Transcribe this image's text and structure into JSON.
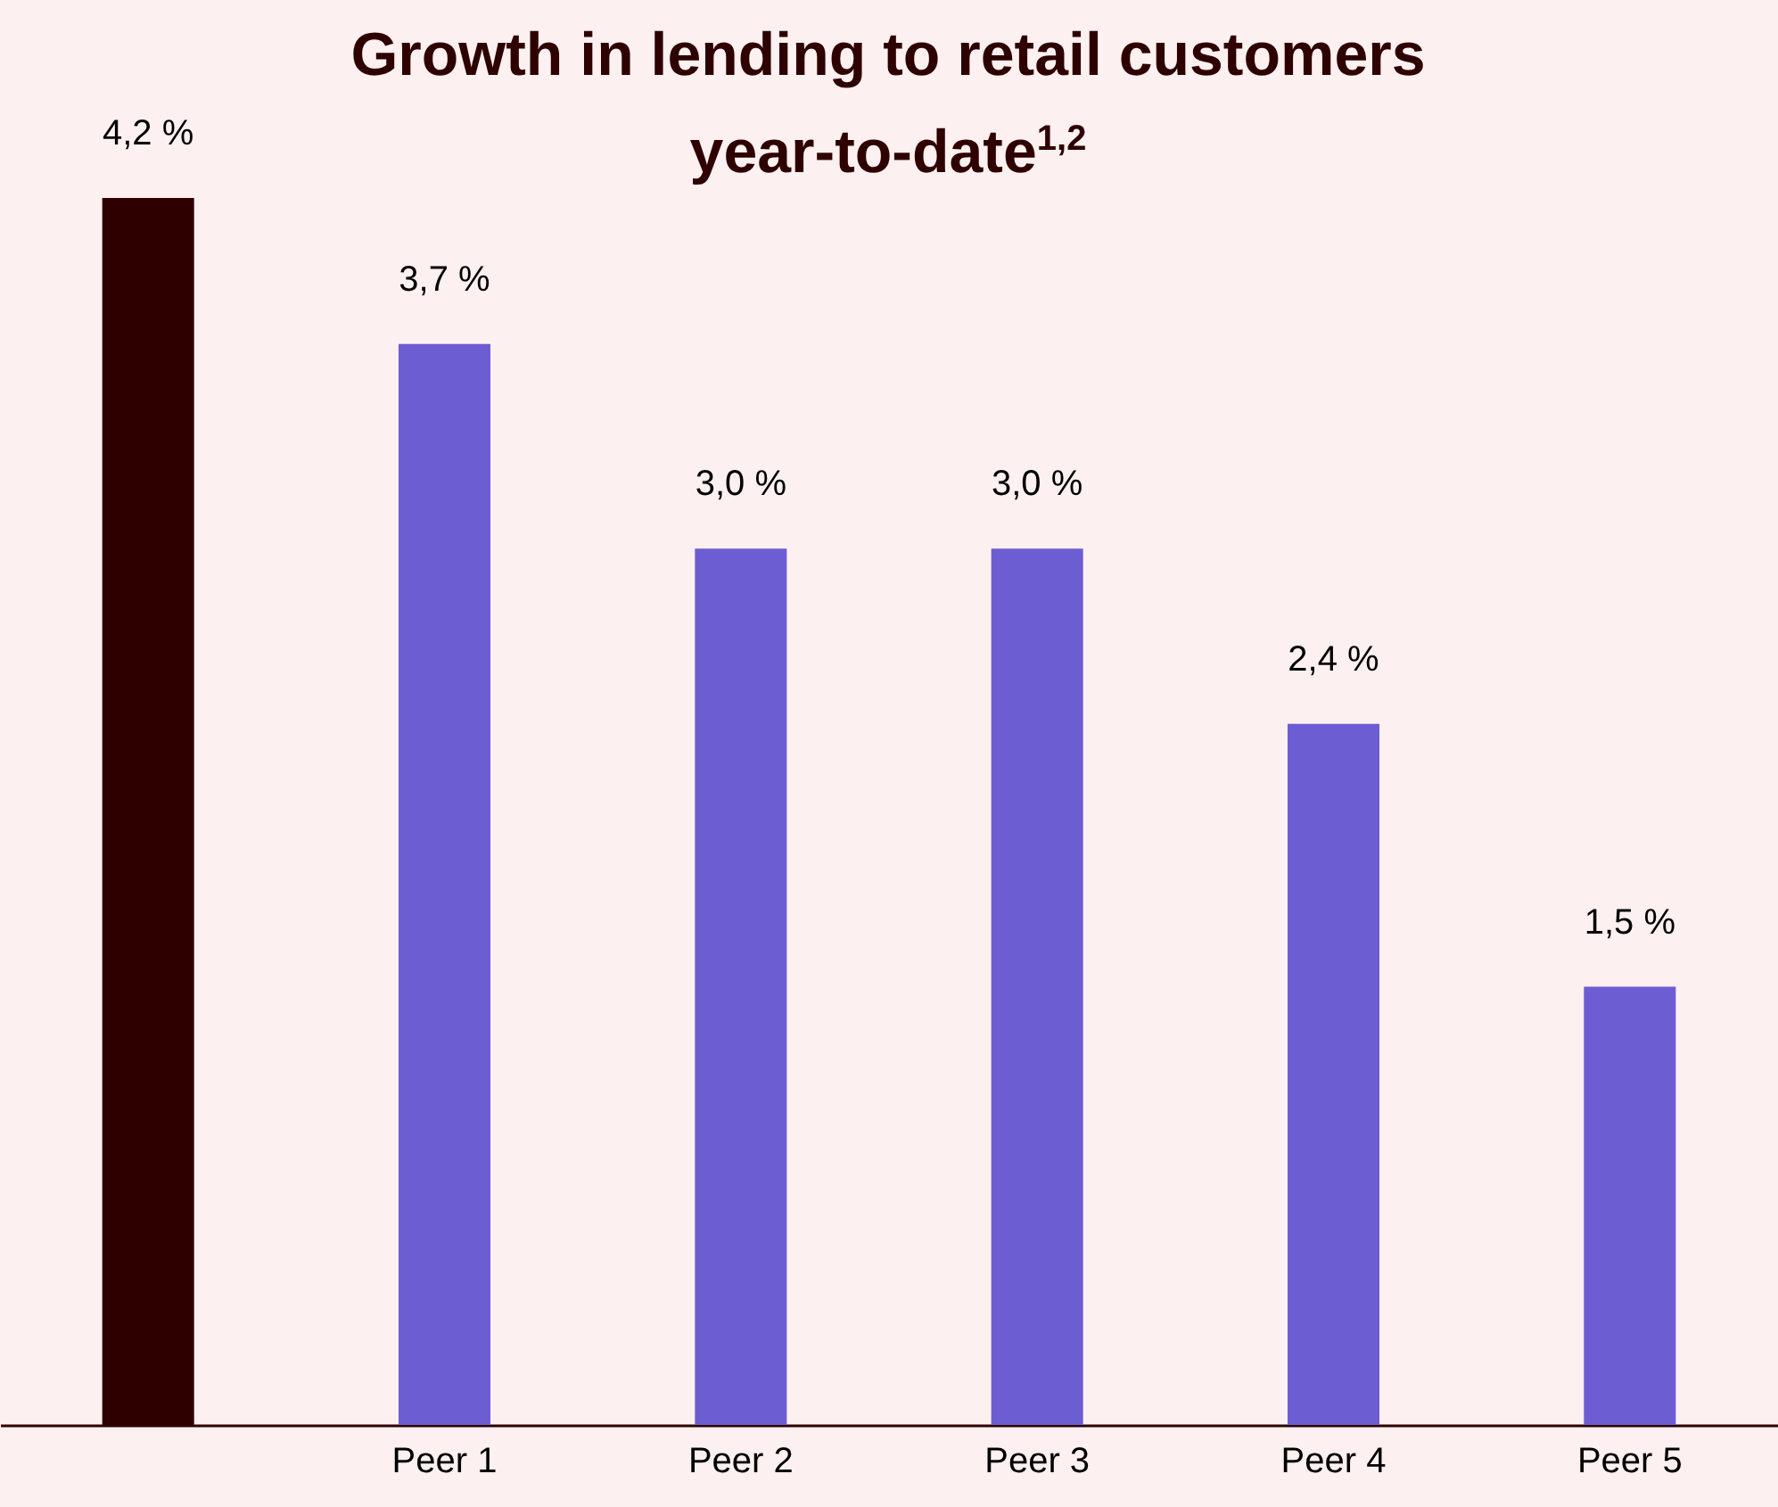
{
  "chart_data": {
    "type": "bar",
    "title": "Growth in lending to retail customers year-to-date$^{1,2}$",
    "categories": [
      null,
      "Peer 1",
      "Peer 2",
      "Peer 3",
      "Peer 4",
      "Peer 5"
    ],
    "values": [
      4.2,
      3.7,
      3.0,
      3.0,
      2.4,
      1.5
    ],
    "value_labels": [
      "4,2 %",
      "3,7 %",
      "3,0 %",
      "3,0 %",
      "2,4 %",
      "1,5 %"
    ],
    "colors": [
      "#2e0000",
      "#6d5dd3",
      "#6d5dd3",
      "#6d5dd3",
      "#6d5dd3",
      "#6d5dd3"
    ]
  }
}
